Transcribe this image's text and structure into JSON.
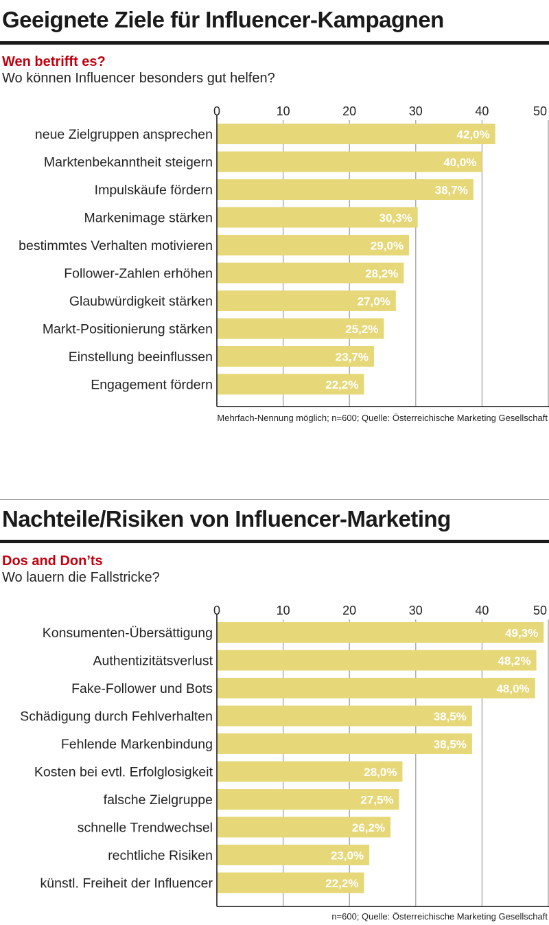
{
  "chart_data": [
    {
      "type": "bar",
      "orientation": "horizontal",
      "title": "Geeignete Ziele für Influencer-Kampagnen",
      "subtitle": "Wen betrifft es?",
      "question": "Wo können Influencer besonders gut helfen?",
      "categories": [
        "neue Zielgruppen ansprechen",
        "Marktenbekanntheit steigern",
        "Impulskäufe fördern",
        "Markenimage stärken",
        "bestimmtes Verhalten motivieren",
        "Follower-Zahlen erhöhen",
        "Glaubwürdigkeit stärken",
        "Markt-Positionierung stärken",
        "Einstellung beeinflussen",
        "Engagement fördern"
      ],
      "values": [
        42.0,
        40.0,
        38.7,
        30.3,
        29.0,
        28.2,
        27.0,
        25.2,
        23.7,
        22.2
      ],
      "labels": [
        "42,0%",
        "40,0%",
        "38,7%",
        "30,3%",
        "29,0%",
        "28,2%",
        "27,0%",
        "25,2%",
        "23,7%",
        "22,2%"
      ],
      "xlim": [
        0,
        50
      ],
      "ticks": [
        "0",
        "10",
        "20",
        "30",
        "40",
        "50"
      ],
      "grid": true,
      "bar_color": "#e6d878",
      "note": "Mehrfach-Nennung möglich; n=600; Quelle: Österreichische Marketing Gesellschaft"
    },
    {
      "type": "bar",
      "orientation": "horizontal",
      "title": "Nachteile/Risiken von Influencer-Marketing",
      "subtitle": "Dos and Don’ts",
      "question": "Wo lauern die Fallstricke?",
      "categories": [
        "Konsumenten-Übersättigung",
        "Authentizitätsverlust",
        "Fake-Follower und Bots",
        "Schädigung durch Fehlverhalten",
        "Fehlende Markenbindung",
        "Kosten bei evtl. Erfolglosigkeit",
        "falsche Zielgruppe",
        "schnelle Trendwechsel",
        "rechtliche Risiken",
        "künstl. Freiheit der Influencer"
      ],
      "values": [
        49.3,
        48.2,
        48.0,
        38.5,
        38.5,
        28.0,
        27.5,
        26.2,
        23.0,
        22.2
      ],
      "labels": [
        "49,3%",
        "48,2%",
        "48,0%",
        "38,5%",
        "38,5%",
        "28,0%",
        "27,5%",
        "26,2%",
        "23,0%",
        "22,2%"
      ],
      "xlim": [
        0,
        50
      ],
      "ticks": [
        "0",
        "10",
        "20",
        "30",
        "40",
        "50"
      ],
      "grid": true,
      "bar_color": "#e6d878",
      "note": "n=600; Quelle: Österreichische Marketing Gesellschaft"
    }
  ]
}
